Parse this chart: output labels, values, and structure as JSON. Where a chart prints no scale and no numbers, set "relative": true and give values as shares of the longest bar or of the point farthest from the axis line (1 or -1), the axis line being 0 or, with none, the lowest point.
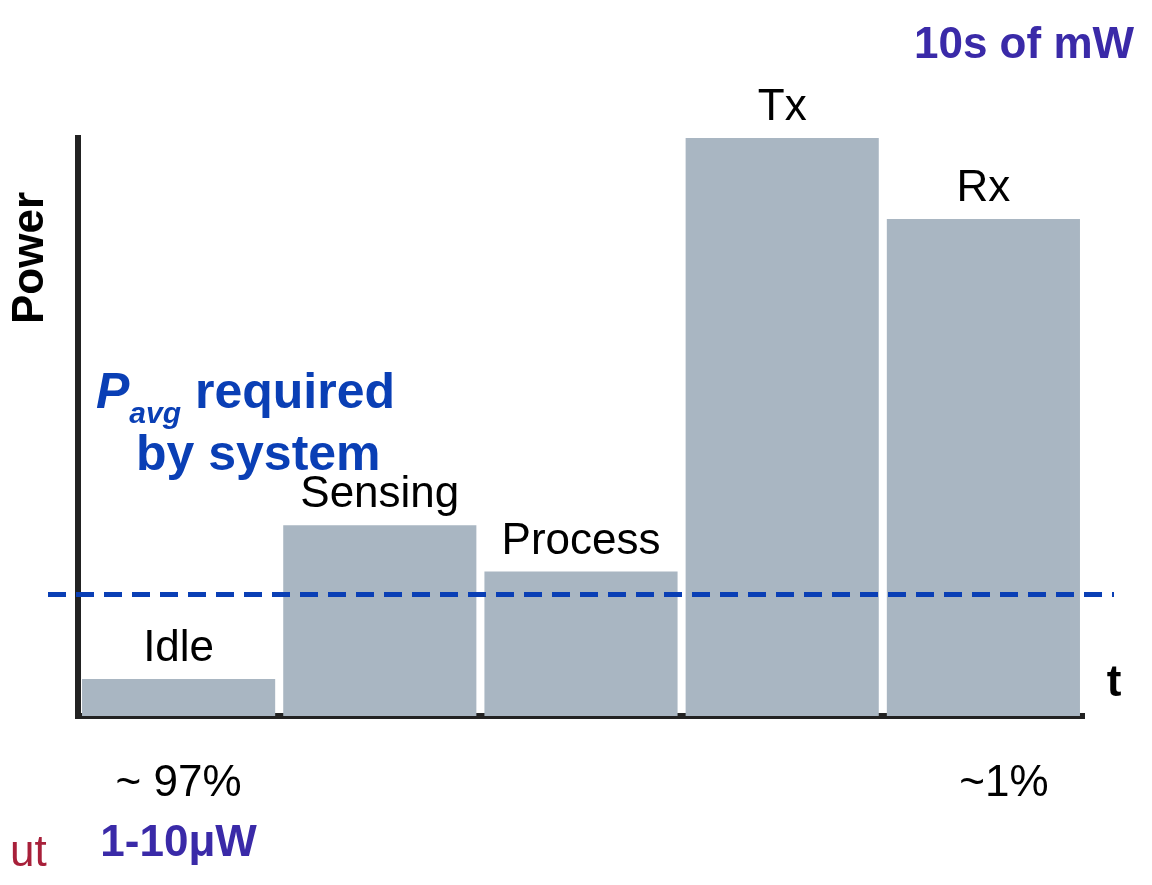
{
  "chart_data": {
    "type": "bar",
    "relative": true,
    "xlabel": "t",
    "ylabel": "Power",
    "categories": [
      "Idle",
      "Sensing",
      "Process",
      "Tx",
      "Rx"
    ],
    "values": [
      0.064,
      0.33,
      0.25,
      1,
      0.86
    ],
    "color": "#a9b6c2",
    "ref_lines": [
      {
        "axis": "y",
        "value": 0.21,
        "label": "P$_{avg}$ required by system",
        "color": "#0a3fb5",
        "line_style": "dashed"
      }
    ],
    "annotations": [
      "~ 97%",
      "1-10μW",
      "~1%",
      "10s of mW",
      "ut"
    ],
    "tick_labels": false,
    "grid": false,
    "legend": false
  }
}
